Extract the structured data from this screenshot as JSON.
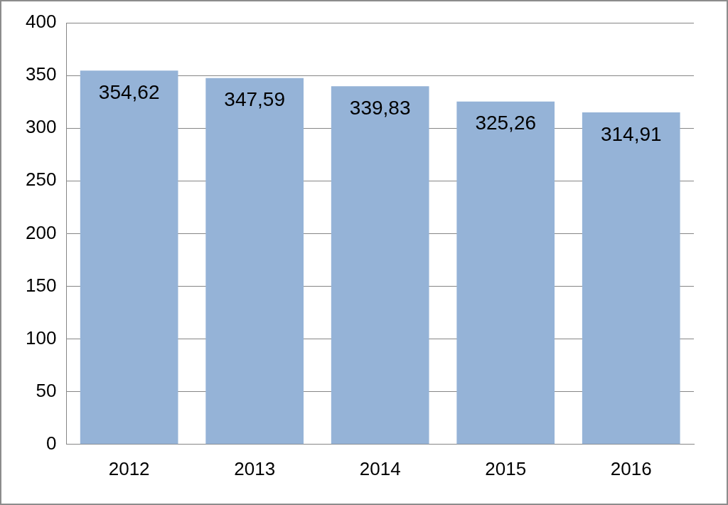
{
  "chart_data": {
    "type": "bar",
    "categories": [
      "2012",
      "2013",
      "2014",
      "2015",
      "2016"
    ],
    "values": [
      354.62,
      347.59,
      339.83,
      325.26,
      314.91
    ],
    "value_labels": [
      "354,62",
      "347,59",
      "339,83",
      "325,26",
      "314,91"
    ],
    "color": "#95b3d7",
    "ylim": [
      0,
      400
    ],
    "yticks": [
      0,
      50,
      100,
      150,
      200,
      250,
      300,
      350,
      400
    ],
    "grid": true,
    "data_labels": true
  }
}
